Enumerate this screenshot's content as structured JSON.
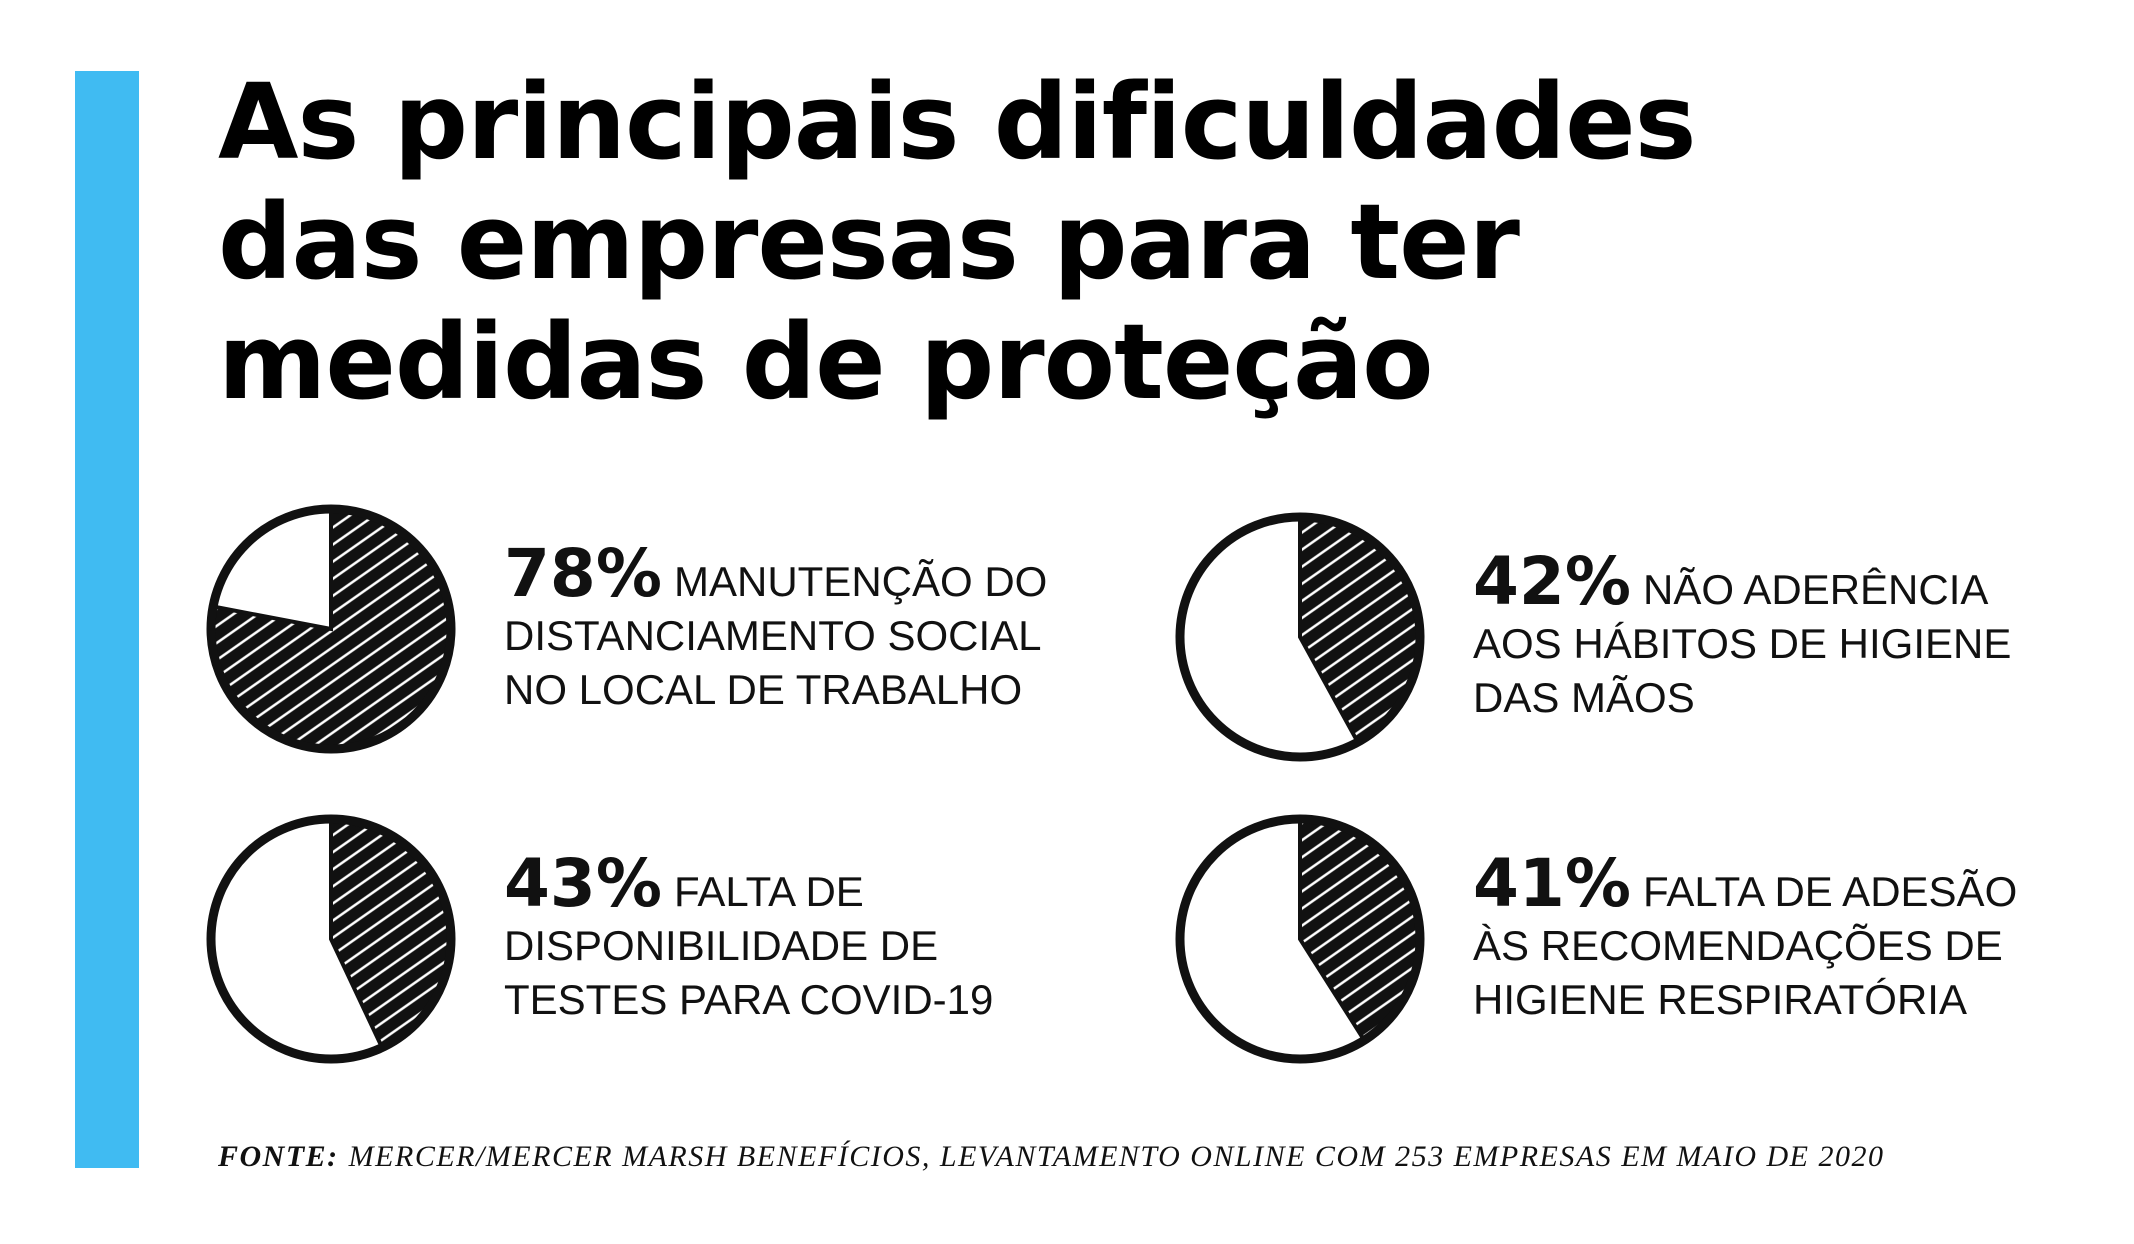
{
  "title": "As principais dificuldades das empresas para ter medidas de proteção",
  "chart_data": [
    {
      "type": "pie",
      "values": [
        78
      ],
      "value_labels": [
        "78%"
      ],
      "text": "MANUTENÇÃO DO DISTANCIAMENTO SOCIAL NO LOCAL DE TRABALHO"
    },
    {
      "type": "pie",
      "values": [
        42
      ],
      "value_labels": [
        "42%"
      ],
      "text": "NÃO ADERÊNCIA AOS HÁBITOS DE HIGIENE DAS MÃOS"
    },
    {
      "type": "pie",
      "values": [
        43
      ],
      "value_labels": [
        "43%"
      ],
      "text": "FALTA DE DISPONIBILIDADE DE TESTES PARA COVID-19"
    },
    {
      "type": "pie",
      "values": [
        41
      ],
      "value_labels": [
        "41%"
      ],
      "text": "FALTA DE ADESÃO ÀS RECOMENDAÇÕES DE HIGIENE RESPIRATÓRIA"
    }
  ],
  "source": {
    "label": "FONTE:",
    "text": "MERCER/MERCER MARSH BENEFÍCIOS, LEVANTAMENTO ONLINE COM 253 EMPRESAS EM MAIO DE 2020"
  }
}
